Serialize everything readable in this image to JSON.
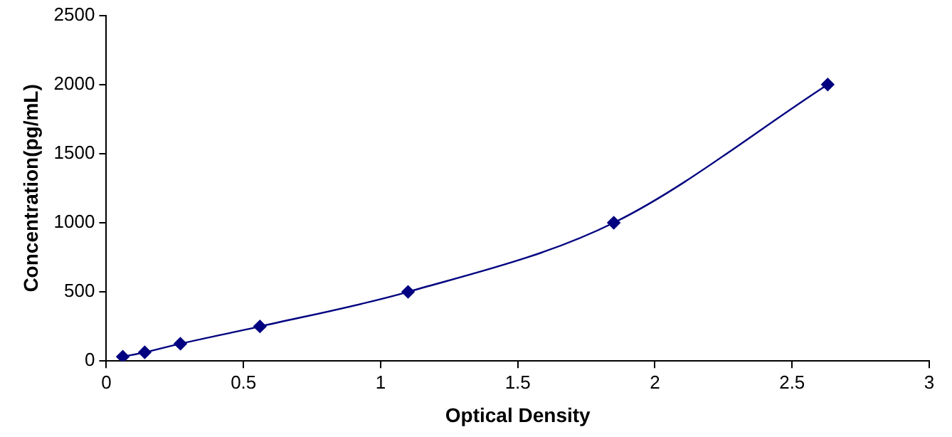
{
  "chart_data": {
    "type": "line",
    "xlabel": "Optical Density",
    "ylabel": "Concentration(pg/mL)",
    "series": [
      {
        "color": "#000080",
        "x": [
          0.06,
          0.14,
          0.27,
          0.56,
          1.1,
          1.85,
          2.63
        ],
        "values": [
          31.25,
          62.5,
          125,
          250,
          500,
          1000,
          2000
        ]
      }
    ],
    "xlim": [
      0,
      3
    ],
    "xticks": [
      0,
      0.5,
      1,
      1.5,
      2,
      2.5,
      3
    ],
    "ylim": [
      0,
      2500
    ],
    "yticks": [
      0,
      500,
      1000,
      1500,
      2000,
      2500
    ],
    "marker": "diamond",
    "legend": false
  }
}
